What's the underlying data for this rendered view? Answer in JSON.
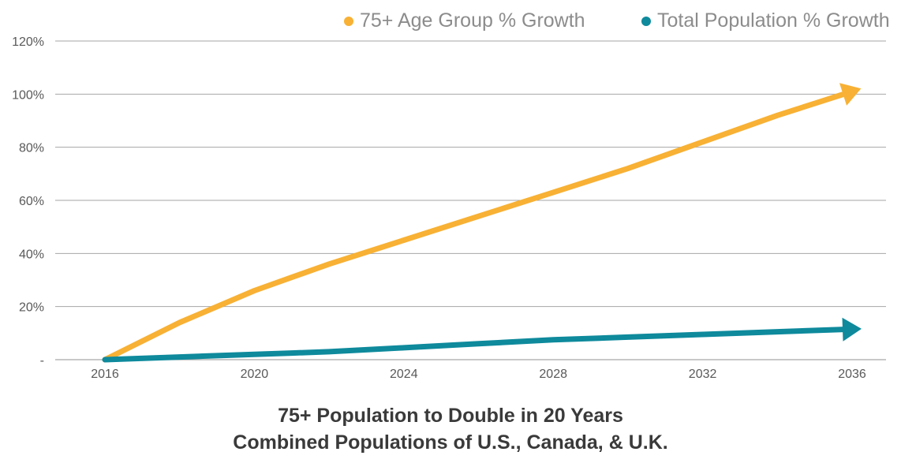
{
  "chart_data": {
    "type": "line",
    "title": "75+ Population to Double in 20 Years",
    "subtitle": "Combined Populations of U.S., Canada, & U.K.",
    "xlabel": "",
    "ylabel": "",
    "x": [
      2016,
      2018,
      2020,
      2021,
      2022,
      2024,
      2026,
      2028,
      2030,
      2032,
      2034,
      2036
    ],
    "x_ticks": [
      "2016",
      "2020",
      "2024",
      "2028",
      "2032",
      "2036"
    ],
    "y_ticks": [
      "-",
      "20%",
      "40%",
      "60%",
      "80%",
      "100%",
      "120%"
    ],
    "ylim": [
      0,
      120
    ],
    "grid": true,
    "legend_position": "top-right",
    "series": [
      {
        "name": "75+ Age Group % Growth",
        "color": "#f8b134",
        "values": [
          0,
          14,
          26,
          31,
          36,
          45,
          54,
          63,
          72,
          82,
          92,
          101
        ]
      },
      {
        "name": "Total Population % Growth",
        "color": "#0e8a9c",
        "values": [
          0,
          1,
          2,
          2.5,
          3,
          4.5,
          6,
          7.5,
          8.5,
          9.5,
          10.5,
          11.5
        ]
      }
    ]
  }
}
